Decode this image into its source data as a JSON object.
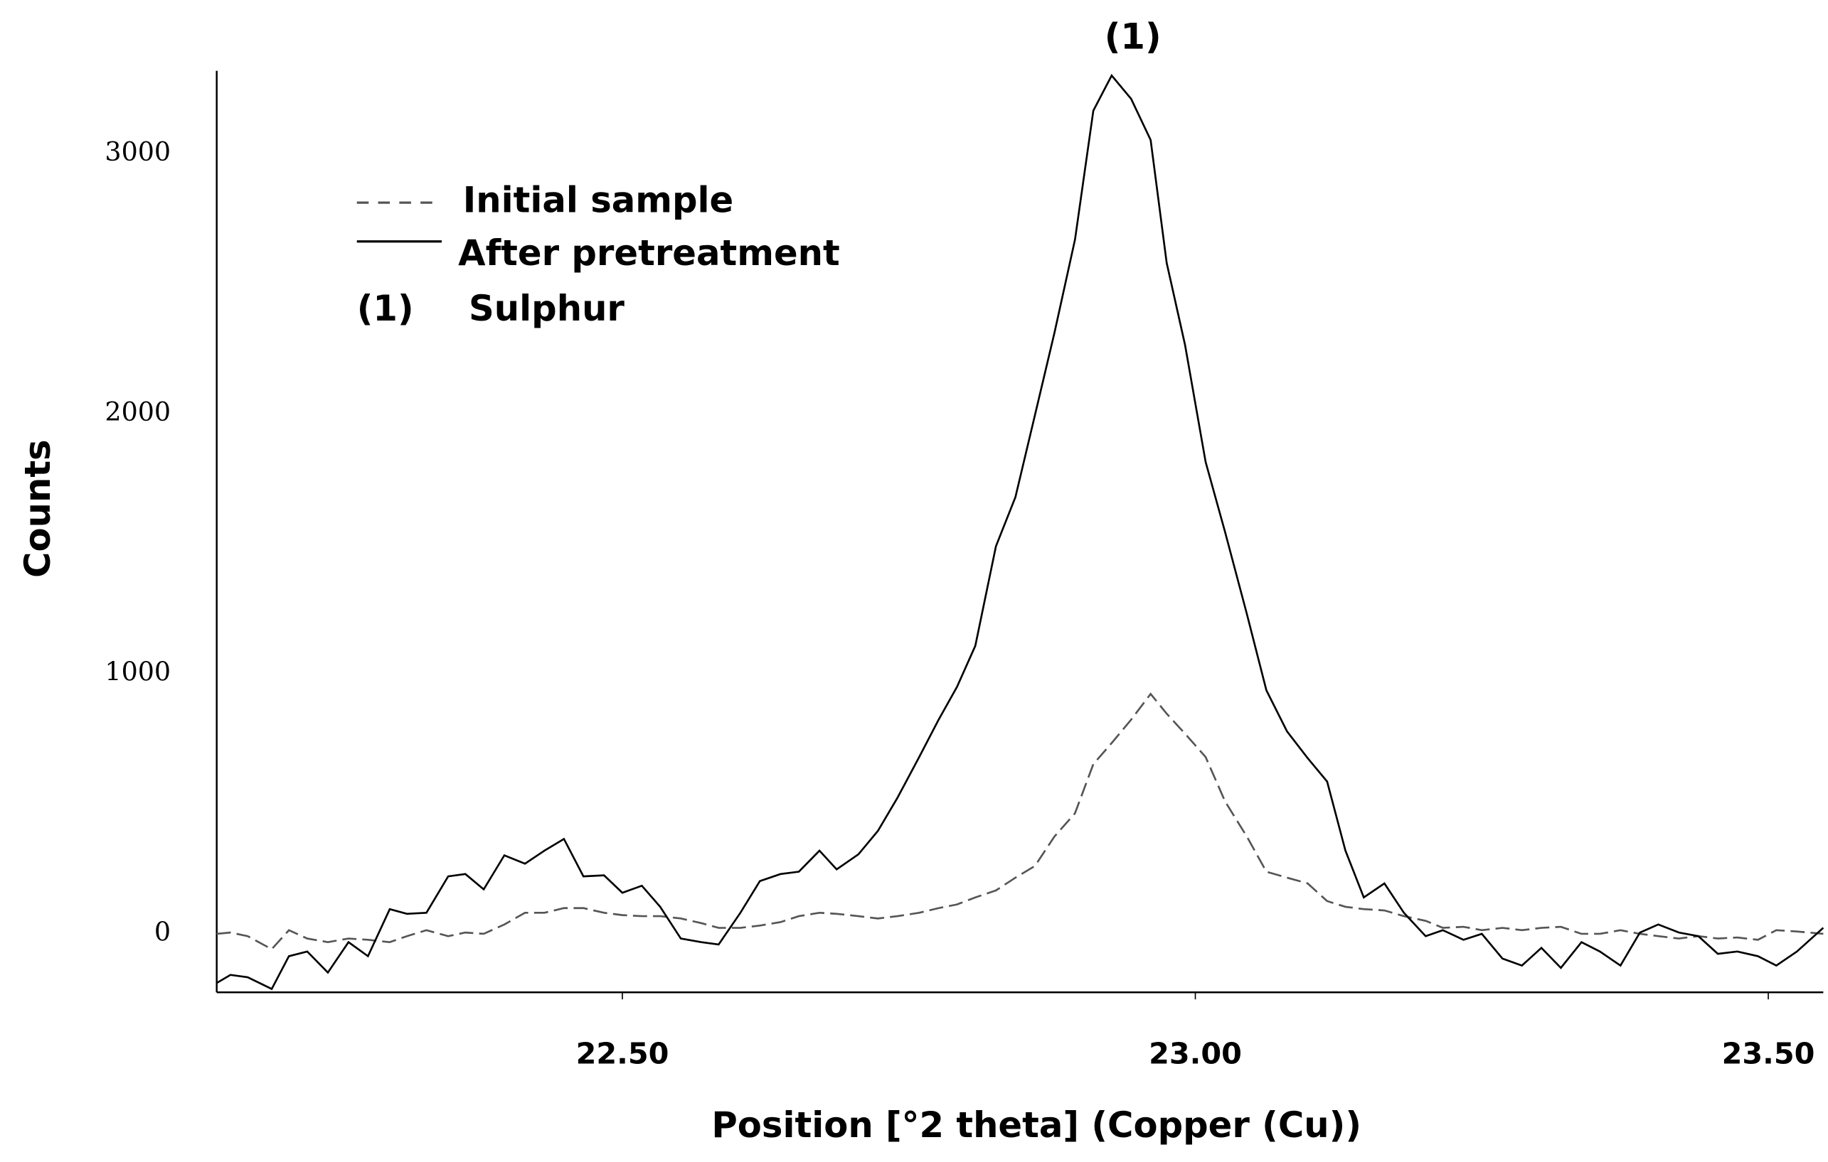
{
  "chart_data": {
    "type": "line",
    "x_label": "Position [°2 theta] (Copper (Cu))",
    "y_label": "Counts",
    "annotation": {
      "text": "(1)",
      "x": 22.927
    },
    "legend_note": {
      "marker": "(1)",
      "text": "Sulphur"
    },
    "legend": "upper left",
    "x": [
      22.146,
      22.158,
      22.173,
      22.194,
      22.209,
      22.225,
      22.243,
      22.261,
      22.278,
      22.297,
      22.312,
      22.329,
      22.348,
      22.363,
      22.379,
      22.397,
      22.415,
      22.432,
      22.449,
      22.466,
      22.484,
      22.5,
      22.517,
      22.533,
      22.551,
      22.569,
      22.584,
      22.603,
      22.62,
      22.638,
      22.654,
      22.672,
      22.687,
      22.706,
      22.723,
      22.74,
      22.759,
      22.776,
      22.792,
      22.808,
      22.826,
      22.843,
      22.86,
      22.877,
      22.895,
      22.911,
      22.927,
      22.944,
      22.961,
      22.975,
      22.991,
      23.009,
      23.026,
      23.045,
      23.062,
      23.08,
      23.098,
      23.115,
      23.131,
      23.147,
      23.165,
      23.182,
      23.201,
      23.216,
      23.234,
      23.25,
      23.268,
      23.285,
      23.302,
      23.319,
      23.337,
      23.353,
      23.371,
      23.388,
      23.404,
      23.422,
      23.439,
      23.456,
      23.473,
      23.491,
      23.507,
      23.525,
      23.548
    ],
    "series": [
      {
        "name": "Initial sample",
        "color": "#555555",
        "dash": true,
        "values": [
          0,
          5,
          -9,
          -59,
          14,
          -18,
          -32,
          -18,
          -23,
          -32,
          -9,
          14,
          -9,
          5,
          0,
          36,
          81,
          81,
          99,
          99,
          81,
          72,
          68,
          68,
          59,
          41,
          23,
          23,
          32,
          45,
          68,
          81,
          77,
          68,
          59,
          68,
          81,
          99,
          113,
          140,
          167,
          216,
          261,
          374,
          464,
          653,
          734,
          824,
          923,
          847,
          770,
          680,
          509,
          374,
          239,
          216,
          194,
          126,
          104,
          95,
          90,
          68,
          50,
          23,
          27,
          14,
          23,
          14,
          23,
          27,
          0,
          0,
          14,
          0,
          -9,
          -18,
          -9,
          -18,
          -14,
          -23,
          14,
          9,
          0
        ]
      },
      {
        "name": "After pretreatment",
        "color": "#000000",
        "dash": false,
        "values": [
          -189,
          -158,
          -167,
          -212,
          -86,
          -68,
          -149,
          -32,
          -86,
          95,
          77,
          81,
          221,
          230,
          171,
          302,
          270,
          320,
          365,
          221,
          225,
          158,
          185,
          104,
          -18,
          -32,
          -41,
          81,
          203,
          230,
          239,
          320,
          248,
          306,
          396,
          523,
          680,
          824,
          950,
          1108,
          1491,
          1680,
          1995,
          2311,
          2671,
          3167,
          3302,
          3212,
          3054,
          2581,
          2266,
          1815,
          1545,
          1230,
          937,
          779,
          676,
          586,
          320,
          140,
          194,
          81,
          -9,
          14,
          -23,
          0,
          -95,
          -122,
          -54,
          -131,
          -32,
          -68,
          -122,
          5,
          36,
          5,
          -9,
          -77,
          -68,
          -86,
          -122,
          -68,
          23
        ]
      }
    ],
    "xlim": [
      22.146,
      23.548
    ],
    "ylim": [
      -225,
      3320
    ],
    "xticks": [
      {
        "value": 22.5,
        "label": "22.50"
      },
      {
        "value": 23.0,
        "label": "23.00"
      },
      {
        "value": 23.5,
        "label": "23.50"
      }
    ],
    "yticks": [
      0,
      1000,
      2000,
      3000
    ]
  }
}
